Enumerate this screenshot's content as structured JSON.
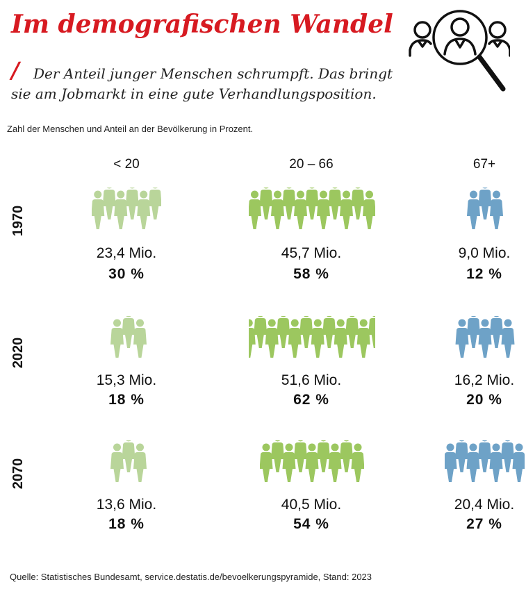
{
  "title": "Im demografischen Wandel",
  "slash": "/",
  "subtitle": "Der Anteil junger Menschen schrumpft. Das bringt sie am Jobmarkt in eine gute Verhandlungsposition.",
  "caption": "Zahl der Menschen und Anteil an der Bevölkerung in Prozent.",
  "logo_icon": "people-magnifier-icon",
  "person_icon": "person-icon",
  "colors": {
    "title": "#d71a21",
    "under20": "#b9d59a",
    "mid": "#9cc75f",
    "over67": "#6ea2c7",
    "logo": "#111111"
  },
  "chart_data": {
    "type": "pictogram",
    "categories": [
      "< 20",
      "20 – 66",
      "67+"
    ],
    "years": [
      "1970",
      "2020",
      "2070"
    ],
    "series": [
      {
        "year": "1970",
        "cells": [
          {
            "category": "< 20",
            "mio_label": "23,4 Mio.",
            "mio": 23.4,
            "pct_label": "30 %",
            "pct": 30,
            "icons": 6
          },
          {
            "category": "20 – 66",
            "mio_label": "45,7 Mio.",
            "mio": 45.7,
            "pct_label": "58 %",
            "pct": 58,
            "icons": 11
          },
          {
            "category": "67+",
            "mio_label": "9,0 Mio.",
            "mio": 9.0,
            "pct_label": "12 %",
            "pct": 12,
            "icons": 3
          }
        ]
      },
      {
        "year": "2020",
        "cells": [
          {
            "category": "< 20",
            "mio_label": "15,3 Mio.",
            "mio": 15.3,
            "pct_label": "18 %",
            "pct": 18,
            "icons": 3
          },
          {
            "category": "20 – 66",
            "mio_label": "51,6 Mio.",
            "mio": 51.6,
            "pct_label": "62 %",
            "pct": 62,
            "icons": 12
          },
          {
            "category": "67+",
            "mio_label": "16,2 Mio.",
            "mio": 16.2,
            "pct_label": "20 %",
            "pct": 20,
            "icons": 5
          }
        ]
      },
      {
        "year": "2070",
        "cells": [
          {
            "category": "< 20",
            "mio_label": "13,6 Mio.",
            "mio": 13.6,
            "pct_label": "18 %",
            "pct": 18,
            "icons": 3
          },
          {
            "category": "20 – 66",
            "mio_label": "40,5 Mio.",
            "mio": 40.5,
            "pct_label": "54 %",
            "pct": 54,
            "icons": 9
          },
          {
            "category": "67+",
            "mio_label": "20,4 Mio.",
            "mio": 20.4,
            "pct_label": "27 %",
            "pct": 27,
            "icons": 7
          }
        ]
      }
    ]
  },
  "source": "Quelle: Statistisches Bundesamt, service.destatis.de/bevoelkerungspyramide, Stand: 2023"
}
